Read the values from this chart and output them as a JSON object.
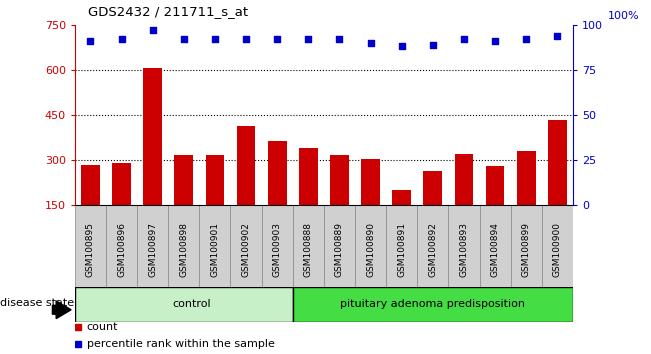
{
  "title": "GDS2432 / 211711_s_at",
  "samples": [
    "GSM100895",
    "GSM100896",
    "GSM100897",
    "GSM100898",
    "GSM100901",
    "GSM100902",
    "GSM100903",
    "GSM100888",
    "GSM100889",
    "GSM100890",
    "GSM100891",
    "GSM100892",
    "GSM100893",
    "GSM100894",
    "GSM100899",
    "GSM100900"
  ],
  "counts": [
    285,
    290,
    605,
    318,
    318,
    415,
    365,
    340,
    318,
    305,
    200,
    263,
    320,
    280,
    330,
    435
  ],
  "percentiles": [
    91,
    92,
    97,
    92,
    92,
    92,
    92,
    92,
    92,
    90,
    88,
    89,
    92,
    91,
    92,
    94
  ],
  "ylim_left": [
    150,
    750
  ],
  "ylim_right": [
    0,
    100
  ],
  "yticks_left": [
    150,
    300,
    450,
    600,
    750
  ],
  "yticks_right": [
    0,
    25,
    50,
    75,
    100
  ],
  "bar_color": "#cc0000",
  "dot_color": "#0000cc",
  "n_control": 7,
  "control_label": "control",
  "disease_label": "pituitary adenoma predisposition",
  "disease_state_label": "disease state",
  "legend_count_label": "count",
  "legend_percentile_label": "percentile rank within the sample",
  "tick_label_color_left": "#cc0000",
  "tick_label_color_right": "#0000cc",
  "control_color": "#c8f0c8",
  "disease_color": "#44dd44",
  "tick_bg_color": "#d0d0d0"
}
